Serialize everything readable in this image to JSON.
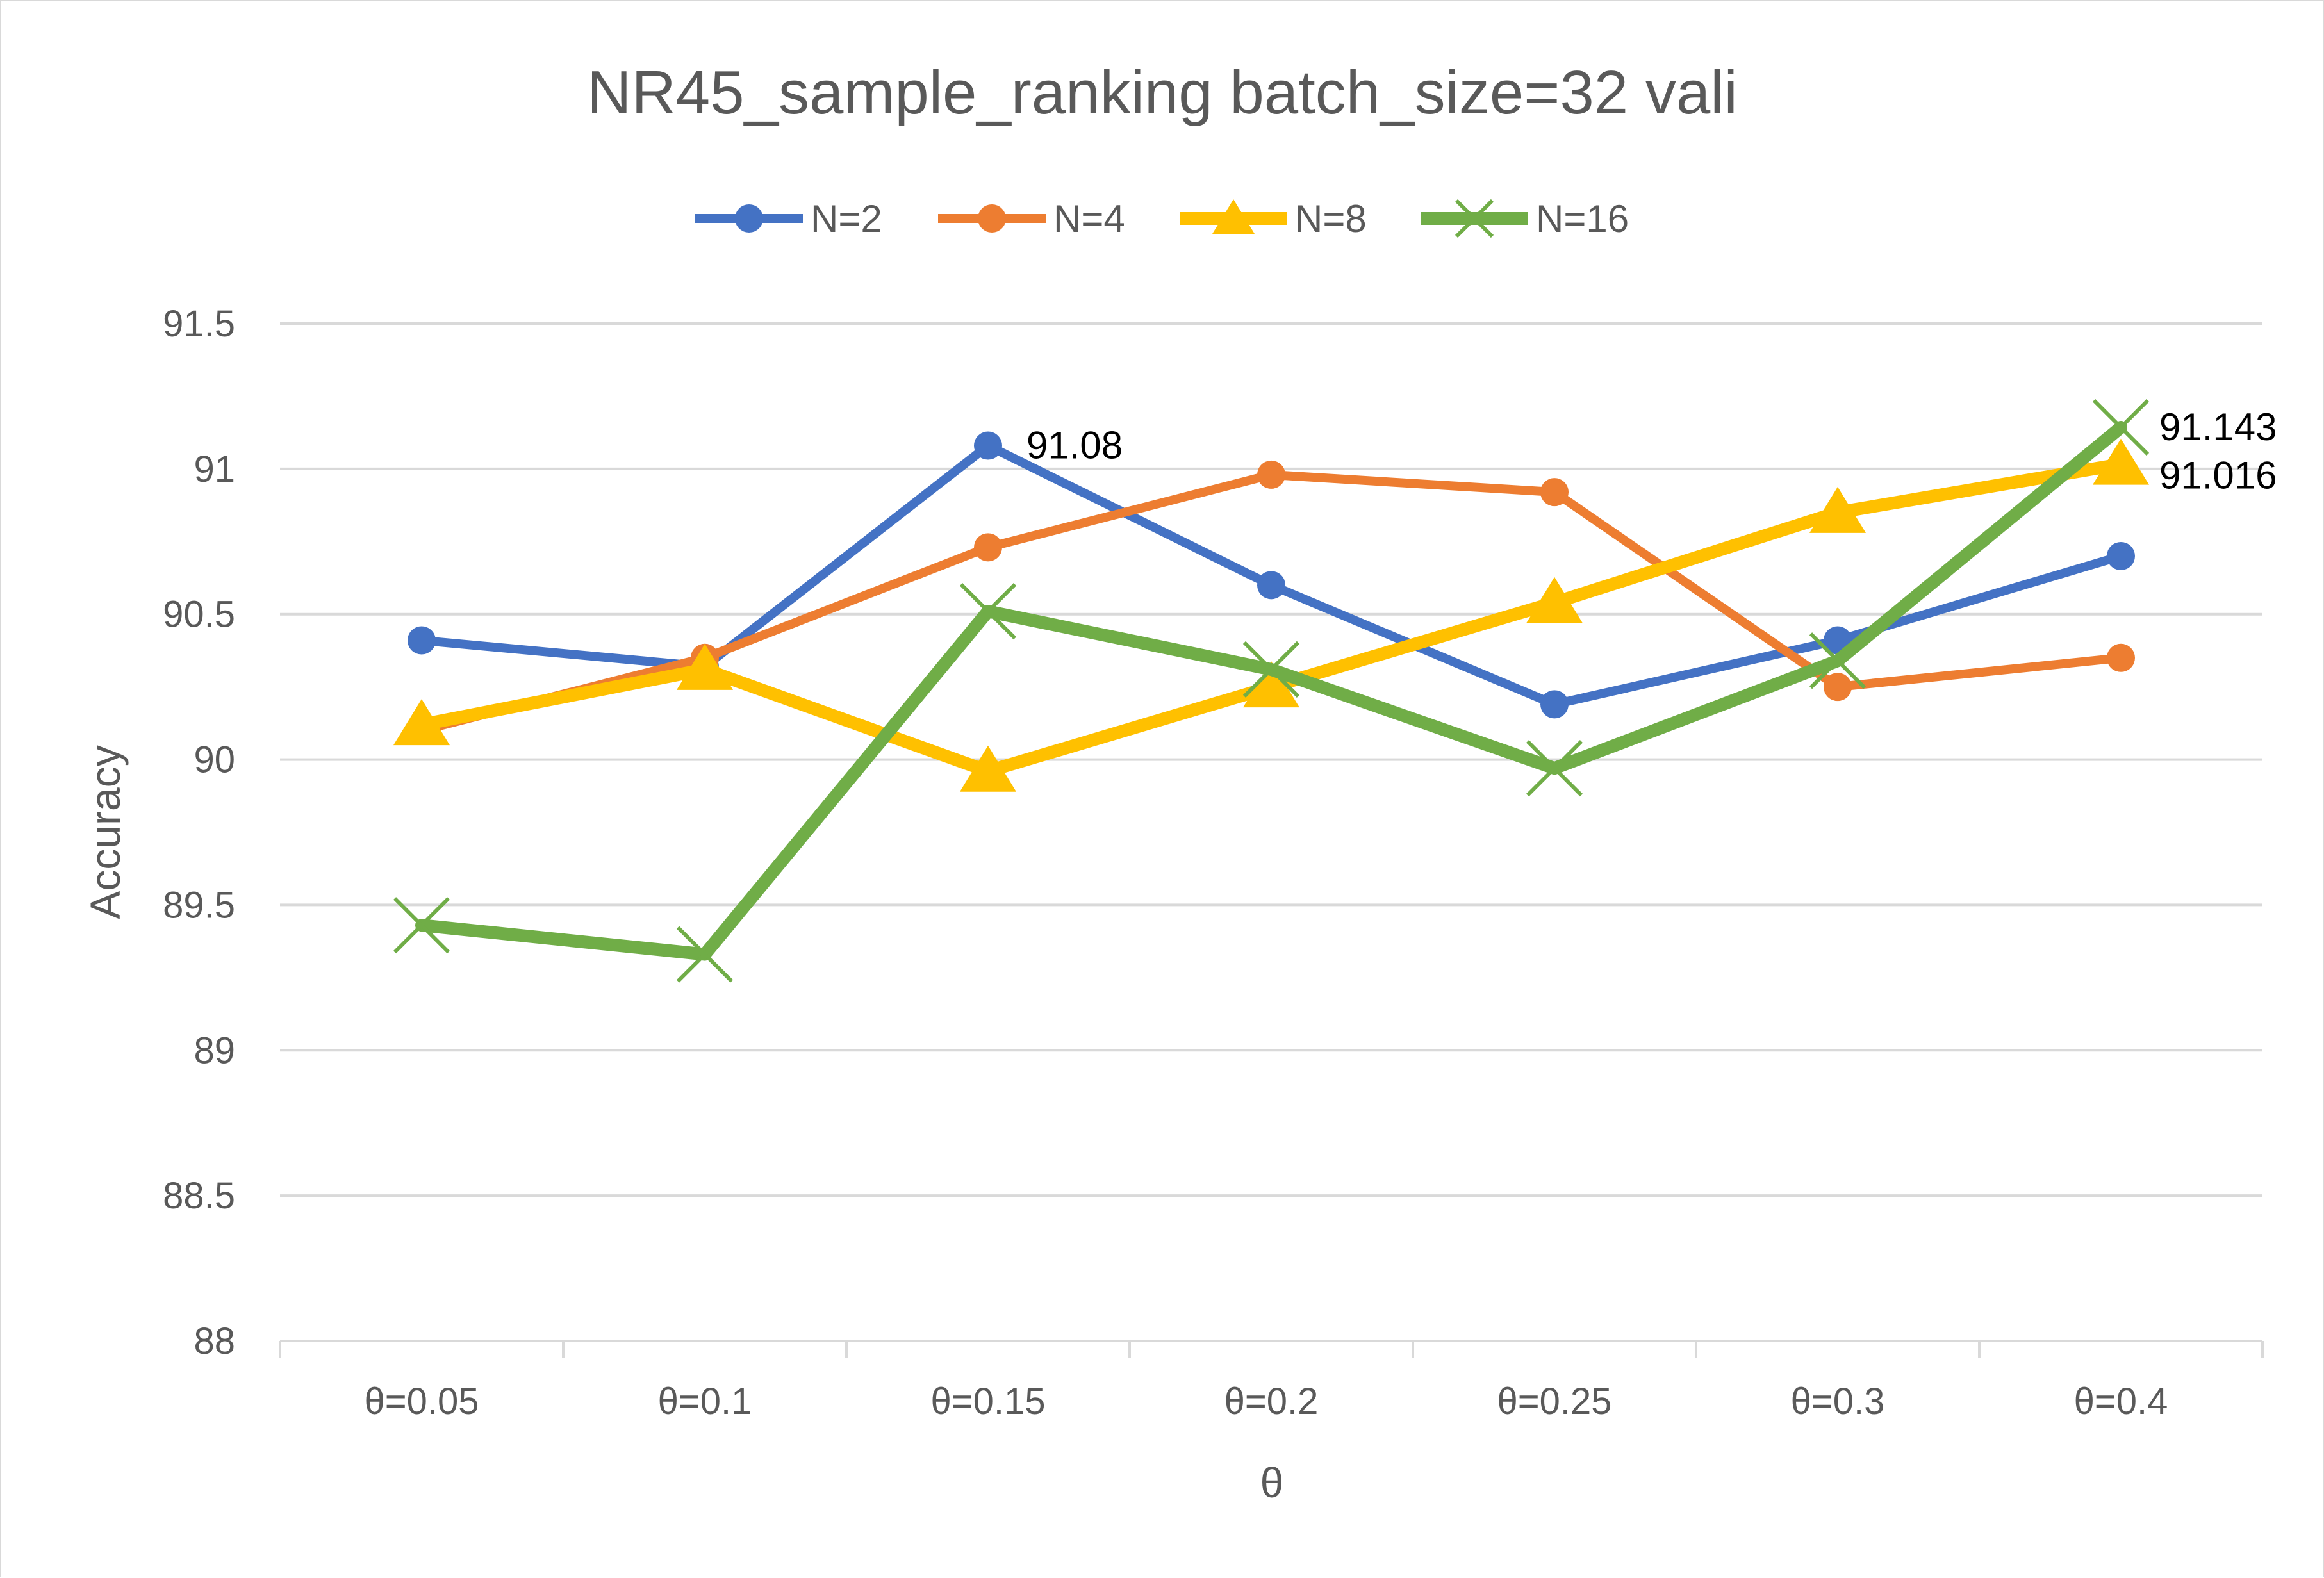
{
  "chart_data": {
    "type": "line",
    "title": "NR45_sample_ranking batch_size=32  vali",
    "xlabel": "θ",
    "ylabel": "Accuracy",
    "categories": [
      "θ=0.05",
      "θ=0.1",
      "θ=0.15",
      "θ=0.2",
      "θ=0.25",
      "θ=0.3",
      "θ=0.4"
    ],
    "ylim": [
      88,
      91.5
    ],
    "yticks": [
      "88",
      "88.5",
      "89",
      "89.5",
      "90",
      "90.5",
      "91",
      "91.5"
    ],
    "grid": true,
    "legend_position": "top",
    "series": [
      {
        "name": "N=2",
        "color": "#4472c4",
        "marker": "circle",
        "values": [
          90.41,
          90.32,
          91.08,
          90.6,
          90.19,
          90.41,
          90.7
        ]
      },
      {
        "name": "N=4",
        "color": "#ed7d31",
        "marker": "circle",
        "values": [
          90.1,
          90.35,
          90.73,
          90.98,
          90.92,
          90.25,
          90.35
        ]
      },
      {
        "name": "N=8",
        "color": "#ffc000",
        "marker": "triangle",
        "values": [
          90.12,
          90.31,
          89.96,
          90.25,
          90.54,
          90.85,
          91.016
        ]
      },
      {
        "name": "N=16",
        "color": "#70ad47",
        "marker": "x",
        "values": [
          89.43,
          89.33,
          90.51,
          90.31,
          89.97,
          90.34,
          91.143
        ]
      }
    ],
    "data_labels": [
      {
        "series": 0,
        "index": 2,
        "text": "91.08"
      },
      {
        "series": 3,
        "index": 6,
        "text": "91.143"
      },
      {
        "series": 2,
        "index": 6,
        "text": "91.016"
      }
    ]
  }
}
